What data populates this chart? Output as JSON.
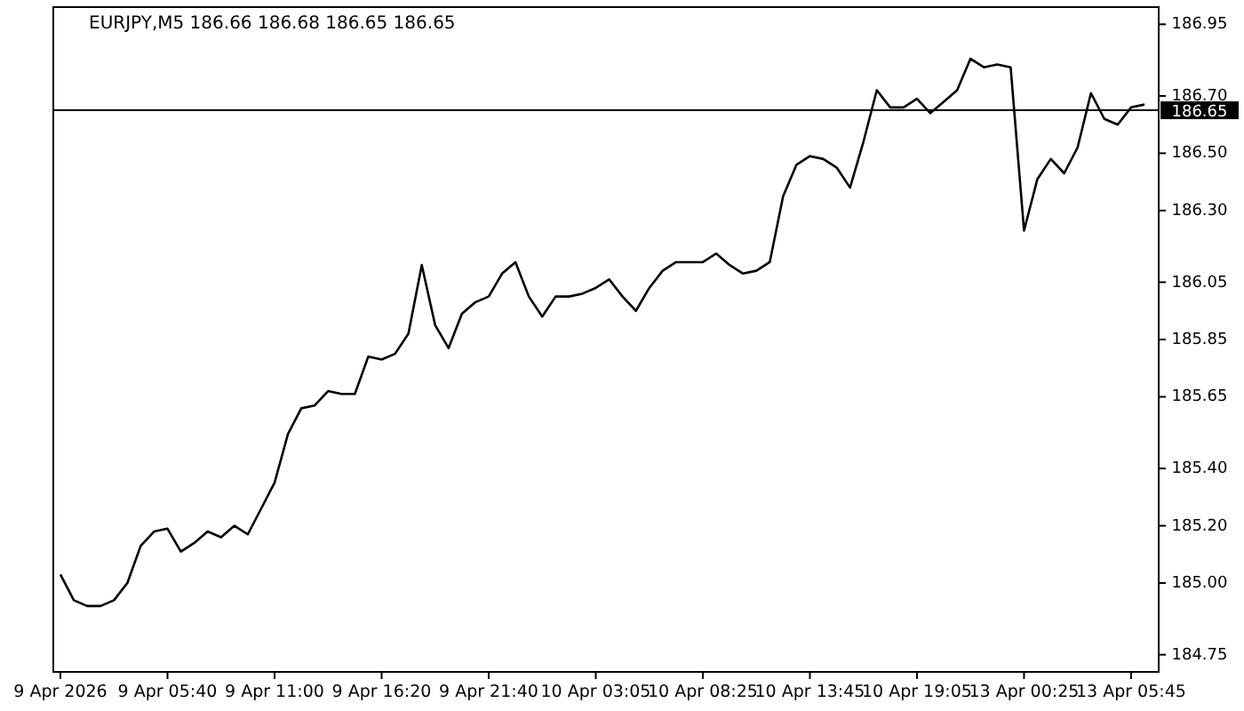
{
  "chart_data": {
    "type": "line",
    "title": "EURJPY,M5  186.66 186.68 186.65 186.65",
    "categories": [
      "9 Apr 2026",
      null,
      null,
      null,
      null,
      null,
      null,
      null,
      "9 Apr 05:40",
      null,
      null,
      null,
      null,
      null,
      null,
      null,
      "9 Apr 11:00",
      null,
      null,
      null,
      null,
      null,
      null,
      null,
      "9 Apr 16:20",
      null,
      null,
      null,
      null,
      null,
      null,
      null,
      "9 Apr 21:40",
      null,
      null,
      null,
      null,
      null,
      null,
      null,
      "10 Apr 03:05",
      null,
      null,
      null,
      null,
      null,
      null,
      null,
      "10 Apr 08:25",
      null,
      null,
      null,
      null,
      null,
      null,
      null,
      "10 Apr 13:45",
      null,
      null,
      null,
      null,
      null,
      null,
      null,
      "10 Apr 19:05",
      null,
      null,
      null,
      null,
      null,
      null,
      null,
      "13 Apr 00:25",
      null,
      null,
      null,
      null,
      null,
      null,
      null,
      "13 Apr 05:45",
      null
    ],
    "series": [
      {
        "color": "#000000",
        "values": [
          185.03,
          184.94,
          184.92,
          184.92,
          184.94,
          185.0,
          185.13,
          185.18,
          185.19,
          185.11,
          185.14,
          185.18,
          185.16,
          185.2,
          185.17,
          185.26,
          185.35,
          185.52,
          185.61,
          185.62,
          185.67,
          185.66,
          185.66,
          185.79,
          185.78,
          185.8,
          185.87,
          186.11,
          185.9,
          185.82,
          185.94,
          185.98,
          186.0,
          186.08,
          186.12,
          186.0,
          185.93,
          186.0,
          186.0,
          186.01,
          186.03,
          186.06,
          186.0,
          185.95,
          186.03,
          186.09,
          186.12,
          186.12,
          186.12,
          186.15,
          186.11,
          186.08,
          186.09,
          186.12,
          186.35,
          186.46,
          186.49,
          186.48,
          186.45,
          186.38,
          186.54,
          186.72,
          186.66,
          186.66,
          186.69,
          186.64,
          186.68,
          186.72,
          186.83,
          186.8,
          186.81,
          186.8,
          186.23,
          186.41,
          186.48,
          186.43,
          186.52,
          186.71,
          186.62,
          186.6,
          186.66,
          186.67
        ]
      }
    ],
    "ylim": [
      184.69,
      187.01
    ],
    "yticks": [
      184.75,
      {
        "value": 185,
        "label": "185.00"
      },
      {
        "value": 185.2,
        "label": "185.20"
      },
      {
        "value": 185.4,
        "label": "185.40"
      },
      185.65,
      185.85,
      186.05,
      {
        "value": 186.3,
        "label": "186.30"
      },
      {
        "value": 186.5,
        "label": "186.50"
      },
      {
        "value": 186.7,
        "label": "186.70"
      },
      186.95
    ],
    "ref_lines": [
      {
        "axis": "y",
        "value": 186.65,
        "label": "186.65",
        "color": "#000000"
      }
    ],
    "grid": false
  }
}
